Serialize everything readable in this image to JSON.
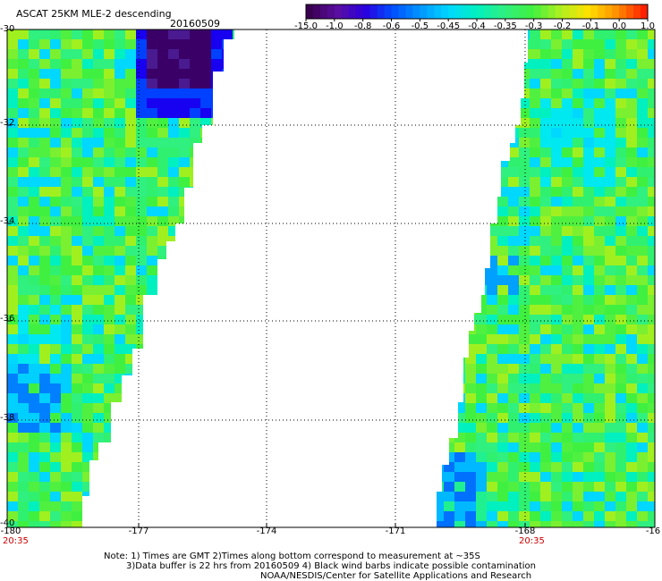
{
  "header": {
    "title": "ASCAT 25KM MLE-2 descending",
    "date": "20160509"
  },
  "colorbar": {
    "ticks": [
      "-15.0",
      "-1.0",
      "-0.8",
      "-0.6",
      "-0.5",
      "-0.45",
      "-0.4",
      "-0.35",
      "-0.3",
      "-0.2",
      "-0.1",
      "0.0",
      "1.0"
    ],
    "colors": [
      "#3a0050",
      "#5a0fa0",
      "#2a00e0",
      "#0050ff",
      "#0098ff",
      "#00d8ff",
      "#00f0c0",
      "#30f080",
      "#40f040",
      "#b0f020",
      "#ffe000",
      "#ff9000",
      "#ff2000"
    ]
  },
  "axes": {
    "y_ticks": [
      "-30",
      "-32",
      "-34",
      "-36",
      "-38",
      "-40"
    ],
    "x_ticks": [
      "-180",
      "-177",
      "-174",
      "-171",
      "-168",
      "-16"
    ],
    "time_labels": [
      "20:35",
      "20:35"
    ]
  },
  "notes": {
    "line1": "Note: 1) Times are GMT 2)Times along bottom correspond to measurement at ~35S",
    "line2": "3)Data buffer is 22 hrs from 20160509 4) Black wind barbs indicate possible contamination",
    "line3": "NOAA/NESDIS/Center for Satellite Applications and Research"
  }
}
